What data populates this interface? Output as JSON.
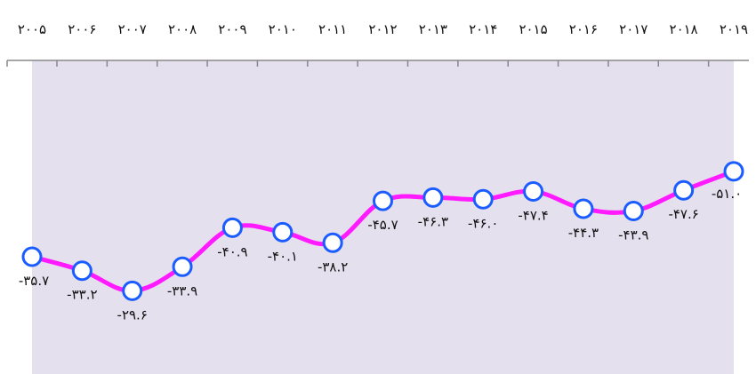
{
  "chart_data": {
    "type": "line",
    "categories": [
      "۲۰۰۵",
      "۲۰۰۶",
      "۲۰۰۷",
      "۲۰۰۸",
      "۲۰۰۹",
      "۲۰۱۰",
      "۲۰۱۱",
      "۲۰۱۲",
      "۲۰۱۳",
      "۲۰۱۴",
      "۲۰۱۵",
      "۲۰۱۶",
      "۲۰۱۷",
      "۲۰۱۸",
      "۲۰۱۹"
    ],
    "series": [
      {
        "values": [
          -35.7,
          -33.2,
          -29.6,
          -33.9,
          -40.9,
          -40.1,
          -38.2,
          -45.7,
          -46.3,
          -46.0,
          -47.4,
          -44.3,
          -43.9,
          -47.6,
          -51.0
        ],
        "labels": [
          "-۳۵.۷",
          "-۳۳.۲",
          "-۲۹.۶",
          "-۳۳.۹",
          "-۴۰.۹",
          "-۴۰.۱",
          "-۳۸.۲",
          "-۴۵.۷",
          "-۴۶.۳",
          "-۴۶.۰",
          "-۴۷.۴",
          "-۴۴.۳",
          "-۴۳.۹",
          "-۴۷.۶",
          "-۵۱.۰"
        ]
      }
    ],
    "x_axis_position": "top",
    "grid": false,
    "colors": {
      "line": "#ff1aff",
      "marker_fill": "#ffffff",
      "marker_stroke": "#1a5cff",
      "band": "#e5e0ee",
      "axis": "#888888"
    }
  }
}
